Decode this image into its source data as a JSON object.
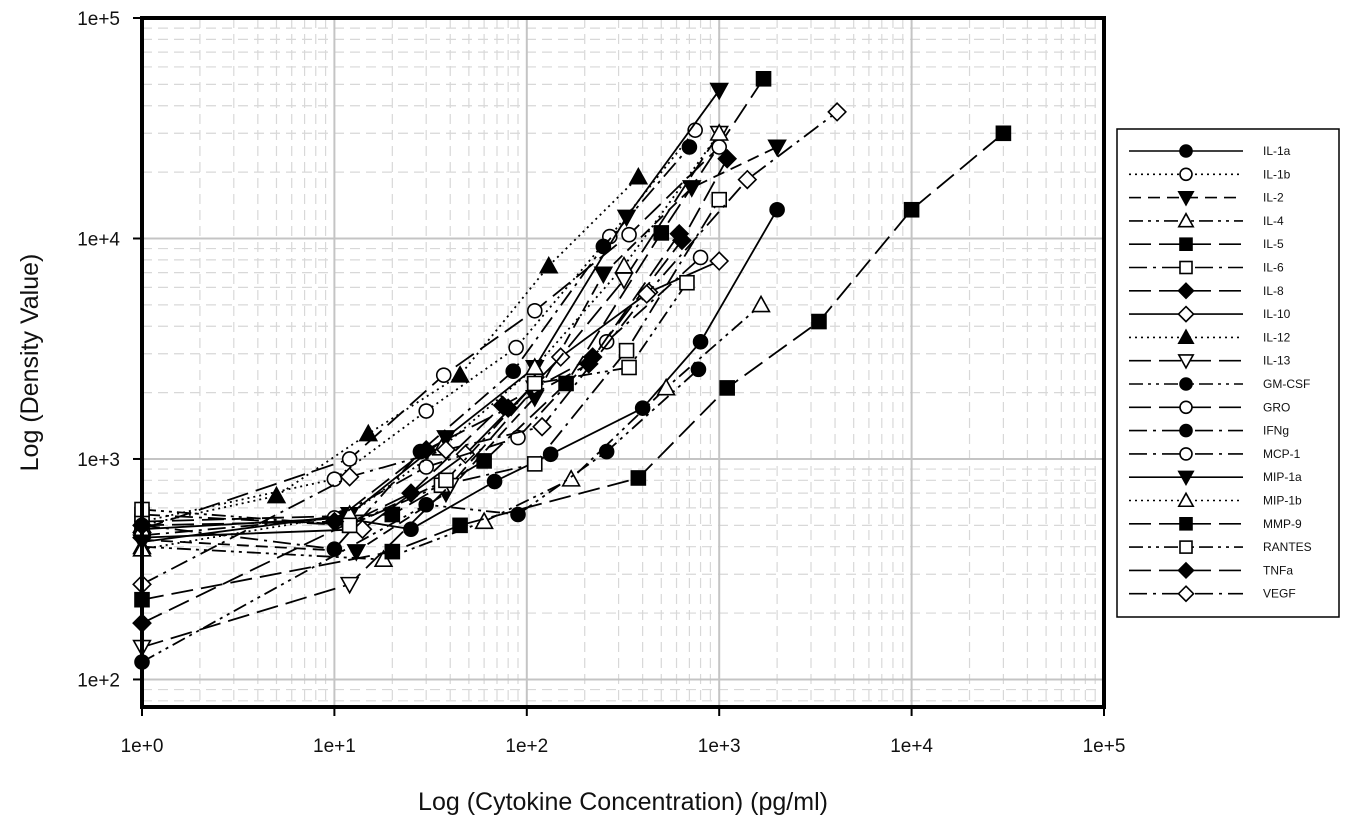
{
  "chart_data": {
    "type": "line",
    "title": "",
    "xlabel": "Log (Cytokine Concentration) (pg/ml)",
    "ylabel": "Log (Density Value)",
    "xscale": "log",
    "yscale": "log",
    "xlim": [
      1,
      100000
    ],
    "ylim": [
      75,
      100000
    ],
    "grid": true,
    "legend_position": "right",
    "x_tick_labels": [
      "1e+0",
      "1e+1",
      "1e+2",
      "1e+3",
      "1e+4",
      "1e+5"
    ],
    "y_tick_labels": [
      "1e+2",
      "1e+3",
      "1e+4",
      "1e+5"
    ],
    "series": [
      {
        "name": "IL-1a",
        "marker": "circle-filled",
        "dash": "solid",
        "x": [
          1,
          11,
          25,
          68,
          133,
          400,
          800,
          2000
        ],
        "y": [
          480,
          540,
          480,
          790,
          1050,
          1700,
          3400,
          13500
        ]
      },
      {
        "name": "IL-1b",
        "marker": "circle-open",
        "dash": "dot",
        "x": [
          1,
          10,
          30,
          88,
          270,
          750
        ],
        "y": [
          520,
          810,
          1650,
          3200,
          10200,
          31000
        ]
      },
      {
        "name": "IL-2",
        "marker": "triangle-down-filled",
        "dash": "dash",
        "x": [
          1,
          13,
          38,
          110,
          250,
          720,
          2000
        ],
        "y": [
          430,
          380,
          700,
          1900,
          6900,
          17000,
          26000
        ]
      },
      {
        "name": "IL-4",
        "marker": "triangle-up-open",
        "dash": "dash-dot-dot",
        "x": [
          1,
          18,
          60,
          170,
          530,
          1650
        ],
        "y": [
          400,
          350,
          520,
          810,
          2100,
          5000
        ]
      },
      {
        "name": "IL-5",
        "marker": "square-filled",
        "dash": "long-dash",
        "x": [
          1,
          20,
          60,
          160,
          500,
          1700
        ],
        "y": [
          520,
          560,
          980,
          2200,
          10600,
          53000
        ]
      },
      {
        "name": "IL-6",
        "marker": "square-open",
        "dash": "dash-dot",
        "x": [
          1,
          12,
          36,
          110,
          330,
          1000
        ],
        "y": [
          560,
          500,
          760,
          950,
          3100,
          15000
        ]
      },
      {
        "name": "IL-8",
        "marker": "diamond-filled",
        "dash": "long-dash",
        "x": [
          1,
          25,
          75,
          220,
          640,
          1100
        ],
        "y": [
          180,
          700,
          1750,
          2900,
          9800,
          23000
        ]
      },
      {
        "name": "IL-10",
        "marker": "diamond-open",
        "dash": "solid",
        "x": [
          1,
          14,
          48,
          150,
          430,
          1000
        ],
        "y": [
          440,
          480,
          1050,
          2900,
          5700,
          7900
        ]
      },
      {
        "name": "IL-12",
        "marker": "triangle-up-filled",
        "dash": "dot",
        "x": [
          1,
          5,
          15,
          45,
          130,
          380
        ],
        "y": [
          500,
          680,
          1300,
          2400,
          7500,
          19000
        ]
      },
      {
        "name": "IL-13",
        "marker": "triangle-down-open",
        "dash": "long-dash",
        "x": [
          1,
          12,
          40,
          110,
          320,
          1000
        ],
        "y": [
          140,
          270,
          760,
          2100,
          6500,
          30000
        ]
      },
      {
        "name": "GM-CSF",
        "marker": "circle-filled",
        "dash": "dash-dot-dot",
        "x": [
          1,
          30,
          90,
          260,
          780
        ],
        "y": [
          120,
          620,
          560,
          1080,
          2550
        ]
      },
      {
        "name": "GRO",
        "marker": "circle-open",
        "dash": "long-dash",
        "x": [
          1,
          12,
          37,
          110,
          340,
          1000
        ],
        "y": [
          480,
          1000,
          2400,
          4700,
          10400,
          26000
        ]
      },
      {
        "name": "IFNg",
        "marker": "circle-filled",
        "dash": "dash-dot",
        "x": [
          1,
          10,
          28,
          85,
          250,
          700
        ],
        "y": [
          500,
          390,
          1080,
          2500,
          9200,
          26000
        ]
      },
      {
        "name": "MCP-1",
        "marker": "circle-open",
        "dash": "dash-dot",
        "x": [
          1,
          10,
          30,
          90,
          260,
          800
        ],
        "y": [
          450,
          540,
          920,
          1250,
          3400,
          8200
        ]
      },
      {
        "name": "MIP-1a",
        "marker": "triangle-down-filled",
        "dash": "solid",
        "x": [
          1,
          12,
          38,
          110,
          330,
          1000
        ],
        "y": [
          420,
          560,
          1250,
          2600,
          12500,
          47000
        ]
      },
      {
        "name": "MIP-1b",
        "marker": "triangle-up-open",
        "dash": "dot",
        "x": [
          1,
          12,
          36,
          110,
          320,
          1000
        ],
        "y": [
          390,
          560,
          1120,
          2600,
          7500,
          30000
        ]
      },
      {
        "name": "MMP-9",
        "marker": "square-filled",
        "dash": "long-dash",
        "x": [
          1,
          20,
          45,
          380,
          1100,
          3300,
          10000,
          30000
        ],
        "y": [
          230,
          380,
          500,
          820,
          2100,
          4200,
          13500,
          30000
        ]
      },
      {
        "name": "RANTES",
        "marker": "square-open",
        "dash": "dash-dot-dot",
        "x": [
          1,
          12,
          38,
          110,
          340,
          680
        ],
        "y": [
          590,
          500,
          800,
          2200,
          2600,
          6300
        ]
      },
      {
        "name": "TNFa",
        "marker": "diamond-filled",
        "dash": "long-dash",
        "x": [
          1,
          10,
          30,
          80,
          210,
          620
        ],
        "y": [
          500,
          520,
          1100,
          1700,
          2700,
          10500
        ]
      },
      {
        "name": "VEGF",
        "marker": "diamond-open",
        "dash": "dash-dot",
        "x": [
          1,
          12,
          38,
          120,
          420,
          1400,
          4100
        ],
        "y": [
          270,
          830,
          1100,
          1400,
          5600,
          18500,
          37500
        ]
      }
    ]
  }
}
